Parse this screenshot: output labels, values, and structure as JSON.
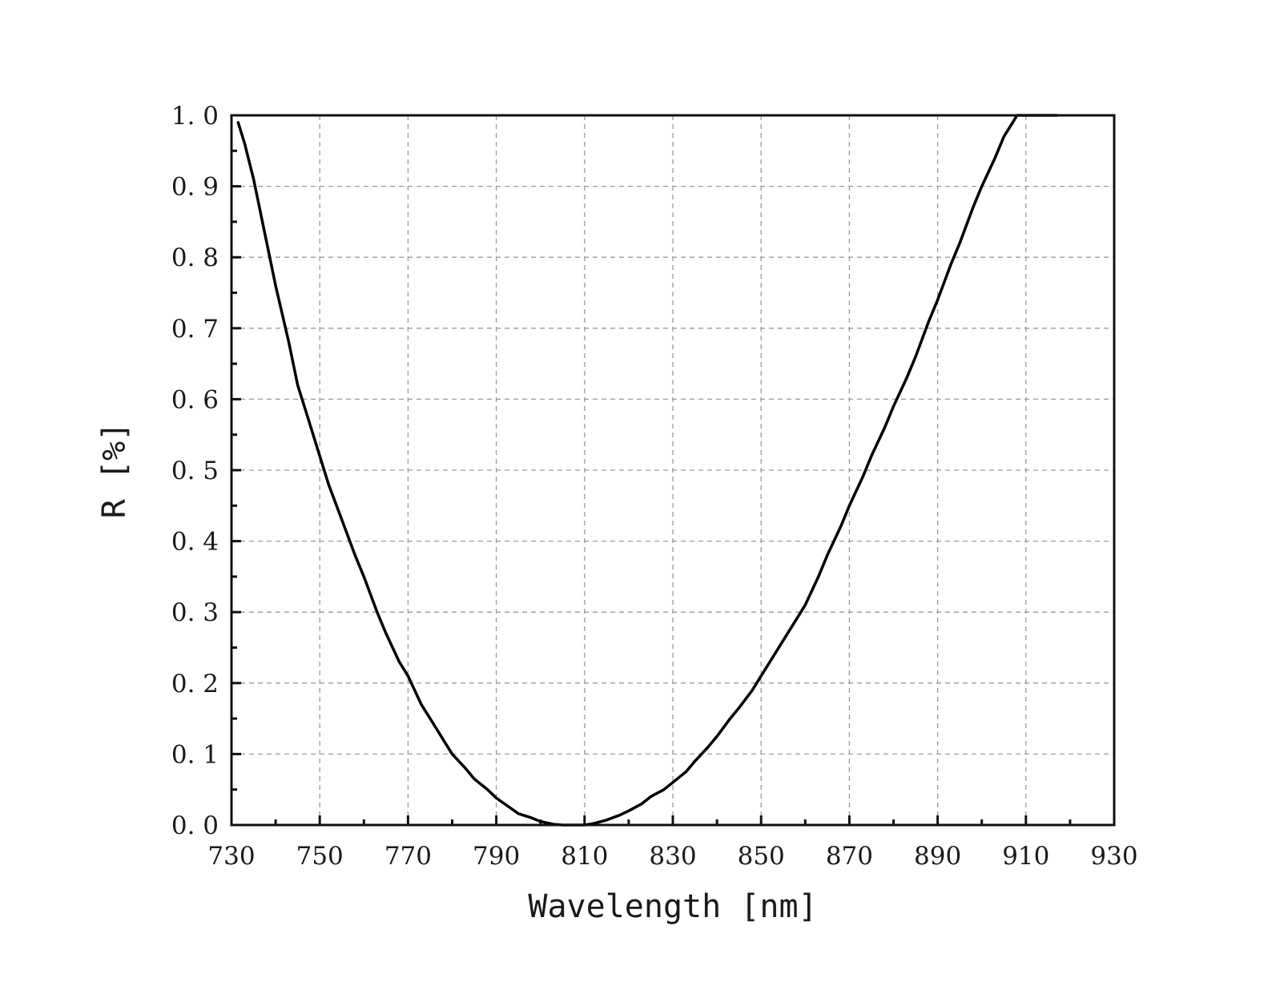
{
  "chart_data": {
    "type": "line",
    "xlabel": "Wavelength [nm]",
    "ylabel": "R [%]",
    "xlim": [
      730,
      930
    ],
    "ylim": [
      0,
      1.0
    ],
    "x_ticks": [
      730,
      750,
      770,
      790,
      810,
      830,
      850,
      870,
      890,
      910,
      930
    ],
    "x_tick_labels": [
      "730",
      "750",
      "770",
      "790",
      "810",
      "830",
      "850",
      "870",
      "890",
      "910",
      "930"
    ],
    "y_ticks": [
      0,
      0.1,
      0.2,
      0.3,
      0.4,
      0.5,
      0.6,
      0.7,
      0.8,
      0.9,
      1.0
    ],
    "y_tick_labels": [
      "0. 0",
      "0. 1",
      "0. 2",
      "0. 3",
      "0. 4",
      "0. 5",
      "0. 6",
      "0. 7",
      "0. 8",
      "0. 9",
      "1. 0"
    ],
    "grid": true,
    "grid_style": "dashed",
    "colors": {
      "line": "#000000",
      "grid": "#9a9a9a",
      "axes": "#111111"
    },
    "series": [
      {
        "x": [
          731.5,
          733,
          735,
          737,
          740,
          743,
          745,
          747,
          750,
          752,
          755,
          758,
          760,
          763,
          765,
          768,
          770,
          773,
          775,
          778,
          780,
          783,
          785,
          788,
          790,
          793,
          795,
          798,
          800,
          803,
          805,
          808,
          810,
          812,
          815,
          818,
          820,
          823,
          825,
          828,
          830,
          833,
          835,
          838,
          840,
          843,
          845,
          848,
          850,
          853,
          855,
          858,
          860,
          863,
          865,
          868,
          870,
          873,
          875,
          878,
          880,
          883,
          885,
          888,
          890,
          893,
          895,
          898,
          900,
          903,
          905,
          908,
          910,
          913,
          915,
          917
        ],
        "y": [
          0.99,
          0.96,
          0.91,
          0.85,
          0.76,
          0.68,
          0.62,
          0.58,
          0.52,
          0.48,
          0.43,
          0.38,
          0.35,
          0.3,
          0.27,
          0.23,
          0.21,
          0.17,
          0.15,
          0.12,
          0.1,
          0.08,
          0.065,
          0.05,
          0.038,
          0.025,
          0.016,
          0.01,
          0.005,
          0.001,
          0.0,
          0.0,
          0.0,
          0.002,
          0.007,
          0.014,
          0.02,
          0.03,
          0.04,
          0.05,
          0.06,
          0.075,
          0.09,
          0.11,
          0.125,
          0.15,
          0.165,
          0.19,
          0.21,
          0.24,
          0.26,
          0.29,
          0.31,
          0.35,
          0.38,
          0.42,
          0.45,
          0.49,
          0.52,
          0.56,
          0.59,
          0.63,
          0.66,
          0.71,
          0.74,
          0.79,
          0.82,
          0.87,
          0.9,
          0.94,
          0.97,
          1.0,
          1.0,
          1.0,
          1.0,
          1.0
        ]
      }
    ]
  }
}
